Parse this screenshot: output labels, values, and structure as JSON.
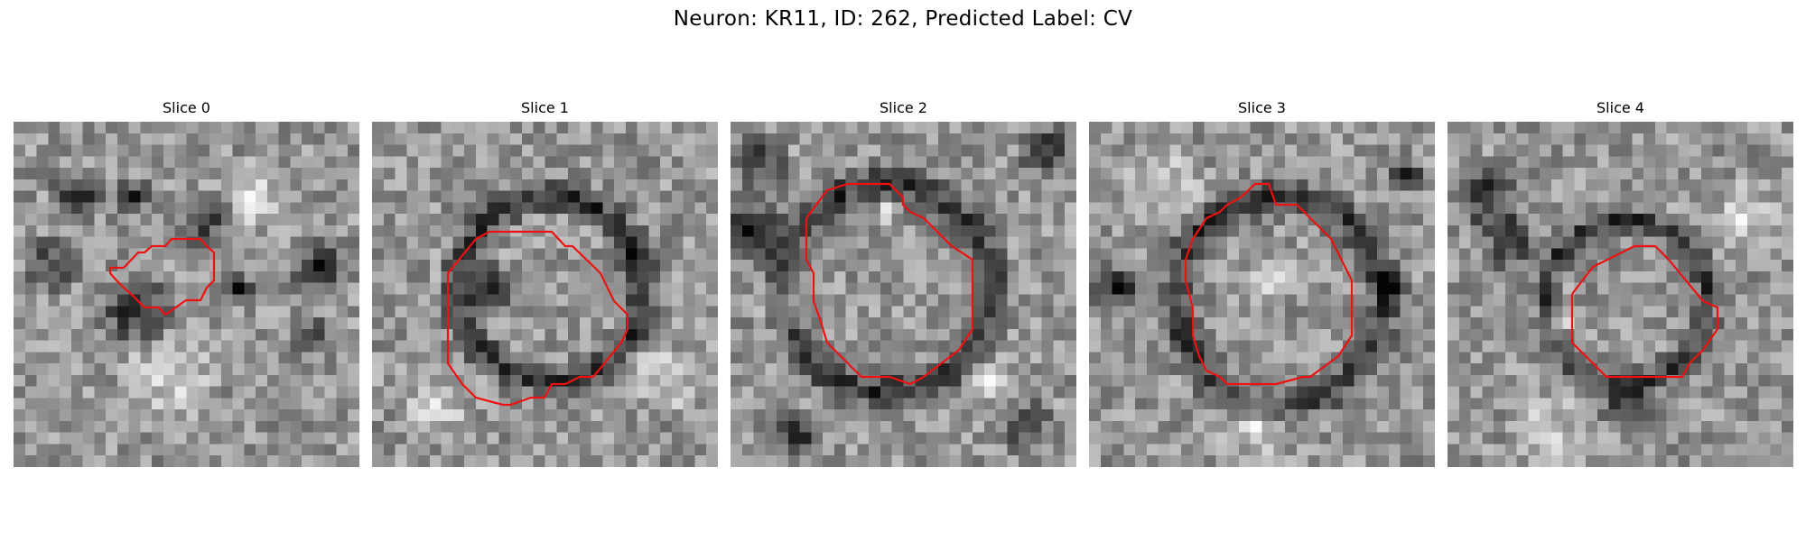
{
  "figure": {
    "title": "Neuron: KR11, ID: 262, Predicted Label: CV",
    "outline_color": "#ee1111",
    "colormap": "grayscale",
    "slices": [
      {
        "label": "Slice 0"
      },
      {
        "label": "Slice 1"
      },
      {
        "label": "Slice 2"
      },
      {
        "label": "Slice 3"
      },
      {
        "label": "Slice 4"
      }
    ]
  }
}
